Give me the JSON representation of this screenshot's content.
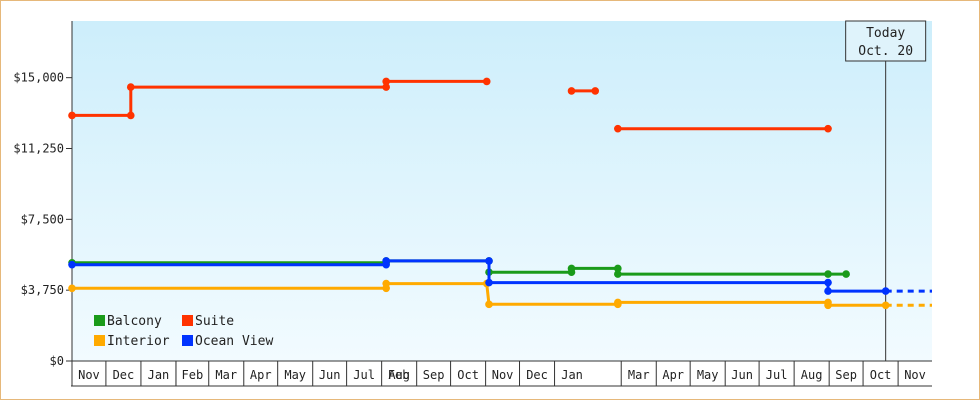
{
  "chart_data": {
    "type": "line",
    "title": "",
    "xlabel": "",
    "ylabel": "",
    "step": true,
    "grid": false,
    "legend_position": "bottom-left",
    "ylim": [
      0,
      18000
    ],
    "yticks": [
      {
        "value": 0,
        "label": "$0"
      },
      {
        "value": 3750,
        "label": "$3,750"
      },
      {
        "value": 7500,
        "label": "$7,500"
      },
      {
        "value": 11250,
        "label": "$11,250"
      },
      {
        "value": 15000,
        "label": "$15,000"
      }
    ],
    "xlim": [
      "2023-10-31",
      "2025-11-30"
    ],
    "x_ticks": [
      {
        "label": "Nov",
        "start": "2023-10-31",
        "end": "2023-11-30"
      },
      {
        "label": "Dec",
        "start": "2023-11-30",
        "end": "2023-12-31"
      },
      {
        "label": "Jan",
        "start": "2023-12-31",
        "end": "2024-01-31"
      },
      {
        "label": "Feb",
        "start": "2024-01-31",
        "end": "2024-02-29"
      },
      {
        "label": "Mar",
        "start": "2024-02-29",
        "end": "2024-03-31"
      },
      {
        "label": "Apr",
        "start": "2024-03-31",
        "end": "2024-04-30"
      },
      {
        "label": "May",
        "start": "2024-04-30",
        "end": "2024-05-31"
      },
      {
        "label": "Jun",
        "start": "2024-05-31",
        "end": "2024-06-30"
      },
      {
        "label": "Jul",
        "start": "2024-06-30",
        "end": "2024-07-31"
      },
      {
        "label": "Aug",
        "start": "2024-07-31",
        "end": "2024-08-31"
      },
      {
        "label": "Sep",
        "start": "2024-08-31",
        "end": "2024-09-30"
      },
      {
        "label": "Oct",
        "start": "2024-09-30",
        "end": "2024-10-31"
      },
      {
        "label": "Nov",
        "start": "2024-10-31",
        "end": "2024-11-30"
      },
      {
        "label": "Dec",
        "start": "2024-11-30",
        "end": "2024-12-31"
      },
      {
        "label": "Jan",
        "start": "2024-12-31",
        "end": "2025-01-31"
      },
      {
        "label": "Feb",
        "start": "2024-01-31",
        "end": "2025-02-28"
      },
      {
        "label": "Mar",
        "start": "2025-02-28",
        "end": "2025-03-31"
      },
      {
        "label": "Apr",
        "start": "2025-03-31",
        "end": "2025-04-30"
      },
      {
        "label": "May",
        "start": "2025-04-30",
        "end": "2025-05-31"
      },
      {
        "label": "Jun",
        "start": "2025-05-31",
        "end": "2025-06-30"
      },
      {
        "label": "Jul",
        "start": "2025-06-30",
        "end": "2025-07-31"
      },
      {
        "label": "Aug",
        "start": "2025-07-31",
        "end": "2025-08-31"
      },
      {
        "label": "Sep",
        "start": "2025-08-31",
        "end": "2025-09-30"
      },
      {
        "label": "Oct",
        "start": "2025-09-30",
        "end": "2025-10-31"
      },
      {
        "label": "Nov",
        "start": "2025-10-31",
        "end": "2025-11-30"
      }
    ],
    "today": {
      "line1": "Today",
      "line2": "Oct. 20",
      "date": "2025-10-20"
    },
    "series": [
      {
        "name": "Balcony",
        "color": "#1a9b1a",
        "segments": [
          {
            "points": [
              [
                "2023-10-31",
                5200
              ],
              [
                "2024-08-04",
                5200
              ],
              [
                "2024-08-04",
                5300
              ],
              [
                "2024-11-03",
                5300
              ],
              [
                "2024-11-03",
                4700
              ],
              [
                "2025-01-15",
                4700
              ],
              [
                "2025-01-15",
                4900
              ],
              [
                "2025-02-25",
                4900
              ],
              [
                "2025-02-25",
                4600
              ],
              [
                "2025-08-30",
                4600
              ],
              [
                "2025-09-15",
                4600
              ]
            ]
          }
        ],
        "projection": null
      },
      {
        "name": "Suite",
        "color": "#ff3300",
        "segments": [
          {
            "points": [
              [
                "2023-10-31",
                13000
              ],
              [
                "2023-12-22",
                13000
              ],
              [
                "2023-12-22",
                14500
              ],
              [
                "2024-08-04",
                14500
              ],
              [
                "2024-08-04",
                14800
              ],
              [
                "2024-11-01",
                14800
              ]
            ]
          },
          {
            "points": [
              [
                "2025-01-15",
                14300
              ],
              [
                "2025-02-05",
                14300
              ]
            ]
          },
          {
            "points": [
              [
                "2025-02-25",
                12300
              ],
              [
                "2025-08-30",
                12300
              ]
            ]
          }
        ],
        "projection": null
      },
      {
        "name": "Interior",
        "color": "#ffaa00",
        "segments": [
          {
            "points": [
              [
                "2023-10-31",
                3850
              ],
              [
                "2024-08-04",
                3850
              ],
              [
                "2024-08-04",
                4100
              ],
              [
                "2024-11-01",
                4100
              ],
              [
                "2024-11-03",
                3000
              ],
              [
                "2025-02-25",
                3000
              ],
              [
                "2025-02-25",
                3100
              ],
              [
                "2025-08-30",
                3100
              ],
              [
                "2025-08-30",
                2950
              ],
              [
                "2025-10-20",
                2950
              ]
            ]
          }
        ],
        "projection": {
          "points": [
            [
              "2025-10-20",
              2950
            ],
            [
              "2025-11-30",
              2950
            ]
          ]
        }
      },
      {
        "name": "Ocean View",
        "color": "#0033ff",
        "segments": [
          {
            "points": [
              [
                "2023-10-31",
                5100
              ],
              [
                "2024-08-04",
                5100
              ],
              [
                "2024-08-04",
                5300
              ],
              [
                "2024-11-03",
                5300
              ],
              [
                "2024-11-03",
                4150
              ],
              [
                "2025-08-30",
                4150
              ],
              [
                "2025-08-30",
                3700
              ],
              [
                "2025-10-20",
                3700
              ]
            ]
          }
        ],
        "projection": {
          "points": [
            [
              "2025-10-20",
              3700
            ],
            [
              "2025-11-30",
              3700
            ]
          ]
        }
      }
    ]
  }
}
